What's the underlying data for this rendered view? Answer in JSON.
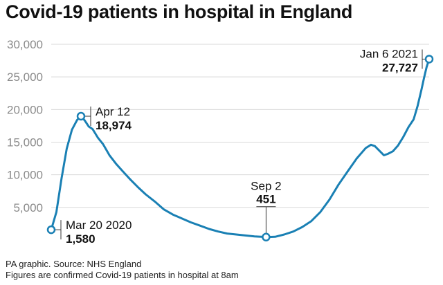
{
  "title": "Covid-19 patients in hospital in England",
  "footer": {
    "source": "PA graphic. Source: NHS England",
    "note": "Figures are confirmed Covid-19 patients in hospital at 8am"
  },
  "colors": {
    "line": "#1a80b4",
    "grid": "#d8d8d8",
    "text": "#111111",
    "tick": "#8a8a8a"
  },
  "chart_data": {
    "type": "line",
    "title": "Covid-19 patients in hospital in England",
    "xlabel": "",
    "ylabel": "",
    "ylim": [
      0,
      30000
    ],
    "yticks": [
      5000,
      10000,
      15000,
      20000,
      25000,
      30000
    ],
    "ytick_labels": [
      "5,000",
      "10,000",
      "15,000",
      "20,000",
      "25,000",
      "30,000"
    ],
    "grid": true,
    "xlim": [
      "2020-03-20",
      "2021-01-06"
    ],
    "series": [
      {
        "points": [
          [
            "2020-03-20",
            1580
          ],
          [
            "2020-03-24",
            4300
          ],
          [
            "2020-03-28",
            9500
          ],
          [
            "2020-04-01",
            14000
          ],
          [
            "2020-04-05",
            16900
          ],
          [
            "2020-04-09",
            18400
          ],
          [
            "2020-04-12",
            18974
          ],
          [
            "2020-04-15",
            18300
          ],
          [
            "2020-04-18",
            17400
          ],
          [
            "2020-04-21",
            17000
          ],
          [
            "2020-04-25",
            15700
          ],
          [
            "2020-04-29",
            14700
          ],
          [
            "2020-05-04",
            13000
          ],
          [
            "2020-05-09",
            11700
          ],
          [
            "2020-05-14",
            10600
          ],
          [
            "2020-05-20",
            9300
          ],
          [
            "2020-05-26",
            8100
          ],
          [
            "2020-06-01",
            7000
          ],
          [
            "2020-06-08",
            5900
          ],
          [
            "2020-06-15",
            4700
          ],
          [
            "2020-06-22",
            3900
          ],
          [
            "2020-06-29",
            3300
          ],
          [
            "2020-07-06",
            2700
          ],
          [
            "2020-07-13",
            2200
          ],
          [
            "2020-07-20",
            1700
          ],
          [
            "2020-07-27",
            1300
          ],
          [
            "2020-08-03",
            1000
          ],
          [
            "2020-08-10",
            850
          ],
          [
            "2020-08-17",
            700
          ],
          [
            "2020-08-24",
            560
          ],
          [
            "2020-09-02",
            451
          ],
          [
            "2020-09-09",
            500
          ],
          [
            "2020-09-16",
            850
          ],
          [
            "2020-09-23",
            1300
          ],
          [
            "2020-09-30",
            2000
          ],
          [
            "2020-10-07",
            2900
          ],
          [
            "2020-10-14",
            4300
          ],
          [
            "2020-10-21",
            6200
          ],
          [
            "2020-10-28",
            8500
          ],
          [
            "2020-11-04",
            10500
          ],
          [
            "2020-11-11",
            12500
          ],
          [
            "2020-11-18",
            14100
          ],
          [
            "2020-11-22",
            14600
          ],
          [
            "2020-11-25",
            14400
          ],
          [
            "2020-11-29",
            13600
          ],
          [
            "2020-12-02",
            13000
          ],
          [
            "2020-12-05",
            13200
          ],
          [
            "2020-12-09",
            13600
          ],
          [
            "2020-12-13",
            14500
          ],
          [
            "2020-12-17",
            15800
          ],
          [
            "2020-12-21",
            17300
          ],
          [
            "2020-12-25",
            18500
          ],
          [
            "2020-12-28",
            20500
          ],
          [
            "2020-12-31",
            23000
          ],
          [
            "2021-01-02",
            24800
          ],
          [
            "2021-01-04",
            26500
          ],
          [
            "2021-01-06",
            27727
          ]
        ]
      }
    ],
    "annotations": [
      {
        "date": "2020-03-20",
        "value": 1580,
        "label": "Mar 20 2020",
        "value_label": "1,580",
        "placement": "right"
      },
      {
        "date": "2020-04-12",
        "value": 18974,
        "label": "Apr 12",
        "value_label": "18,974",
        "placement": "right"
      },
      {
        "date": "2020-09-02",
        "value": 451,
        "label": "Sep 2",
        "value_label": "451",
        "placement": "above"
      },
      {
        "date": "2021-01-06",
        "value": 27727,
        "label": "Jan 6 2021",
        "value_label": "27,727",
        "placement": "left"
      }
    ]
  }
}
